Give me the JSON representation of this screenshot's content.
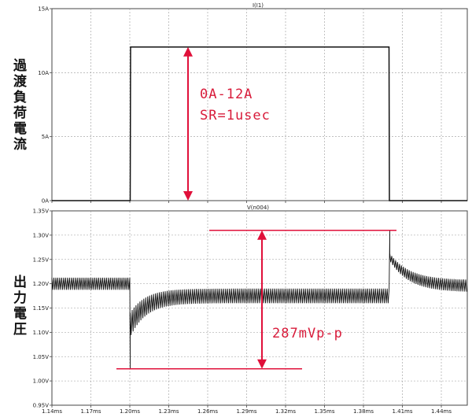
{
  "chart_data": [
    {
      "type": "line",
      "title": "I(I1)",
      "ylabel": "過渡負荷電流",
      "xlim": [
        1.14,
        1.46
      ],
      "ylim": [
        0,
        15
      ],
      "y_ticks": [
        "0A",
        "5A",
        "10A",
        "15A"
      ],
      "grid": true,
      "series": [
        {
          "x": [
            1.14,
            1.2003,
            1.2006,
            1.3997,
            1.4,
            1.46
          ],
          "y": [
            0,
            0,
            12,
            12,
            0,
            0
          ]
        }
      ],
      "annotations": [
        {
          "text": "0A-12A",
          "type": "double-arrow",
          "from": 0,
          "to": 12
        },
        {
          "text": "SR=1usec"
        }
      ]
    },
    {
      "type": "line",
      "title": "V(n004)",
      "ylabel": "出力電圧",
      "xlabel": "",
      "xlim": [
        1.14,
        1.46
      ],
      "ylim": [
        0.95,
        1.35
      ],
      "x_ticks": [
        "1.14ms",
        "1.17ms",
        "1.20ms",
        "1.23ms",
        "1.26ms",
        "1.29ms",
        "1.32ms",
        "1.35ms",
        "1.38ms",
        "1.41ms",
        "1.44ms"
      ],
      "y_ticks": [
        "0.95V",
        "1.00V",
        "1.05V",
        "1.10V",
        "1.15V",
        "1.20V",
        "1.25V",
        "1.30V",
        "1.35V"
      ],
      "grid": true,
      "series": [
        {
          "segments": [
            {
              "x_start": 1.14,
              "x_end": 1.2,
              "center": 1.2,
              "ripple_pp": 0.025,
              "settle_from": 1.2,
              "tau": 0
            },
            {
              "x_start": 1.2003,
              "x_end": 1.4,
              "center": 1.175,
              "ripple_pp": 0.03,
              "settle_from": 1.115,
              "tau": 0.012,
              "ripple_start": 0.05
            },
            {
              "x_start": 1.4003,
              "x_end": 1.46,
              "center": 1.195,
              "ripple_pp": 0.025,
              "settle_from": 1.255,
              "tau": 0.015,
              "ripple_start": 0.015
            }
          ],
          "spikes": [
            {
              "x": 1.2003,
              "from": 1.2,
              "to": 1.025
            },
            {
              "x": 1.4003,
              "from": 1.175,
              "to": 1.31
            }
          ],
          "ripple_period": 0.0015
        }
      ],
      "annotations": [
        {
          "text": "287mVp-p",
          "type": "double-arrow",
          "from": 1.025,
          "to": 1.31
        }
      ]
    }
  ]
}
